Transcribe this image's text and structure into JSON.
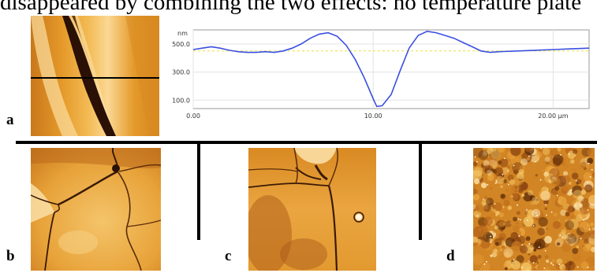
{
  "caption_fragment": "disappeared by combining the two effects: no temperature plate",
  "panels": {
    "a": {
      "label": "a"
    },
    "b": {
      "label": "b"
    },
    "c": {
      "label": "c"
    },
    "d": {
      "label": "d"
    }
  },
  "chart_data": {
    "type": "line",
    "title": "",
    "xlabel": "",
    "ylabel": "",
    "x_unit": "µm",
    "y_unit": "nm",
    "xlim": [
      0,
      22
    ],
    "ylim": [
      40,
      600
    ],
    "y_ticks": [
      "500.0",
      "300.0",
      "100.0"
    ],
    "y_tick_values": [
      500,
      300,
      100
    ],
    "x_ticks": [
      "0.00",
      "10.00",
      "20.00 µm"
    ],
    "x_tick_values": [
      0,
      10,
      20
    ],
    "grid": true,
    "reference_line": {
      "y": 450,
      "style": "dashed",
      "color": "#e8e040"
    },
    "series": [
      {
        "color": "#3a4fe0",
        "x": [
          0,
          0.5,
          1,
          1.5,
          2,
          2.5,
          3,
          3.5,
          4,
          4.5,
          5,
          5.5,
          6,
          6.5,
          7,
          7.5,
          8,
          8.5,
          9,
          9.5,
          10,
          10.2,
          10.5,
          11,
          11.5,
          12,
          12.5,
          13,
          13.5,
          14,
          14.5,
          15,
          15.5,
          16,
          16.5,
          17,
          18,
          19,
          20,
          21,
          22
        ],
        "y": [
          460,
          470,
          480,
          470,
          455,
          445,
          440,
          440,
          445,
          440,
          450,
          470,
          500,
          540,
          570,
          580,
          555,
          490,
          390,
          260,
          110,
          55,
          60,
          140,
          310,
          470,
          560,
          590,
          580,
          560,
          540,
          510,
          480,
          450,
          440,
          445,
          450,
          455,
          460,
          465,
          470
        ]
      }
    ]
  },
  "colors": {
    "afm_light": "#f7c667",
    "afm_mid": "#e0951f",
    "afm_dark": "#2a1005",
    "profile_line": "#3a4fe0",
    "rule": "#000000"
  }
}
